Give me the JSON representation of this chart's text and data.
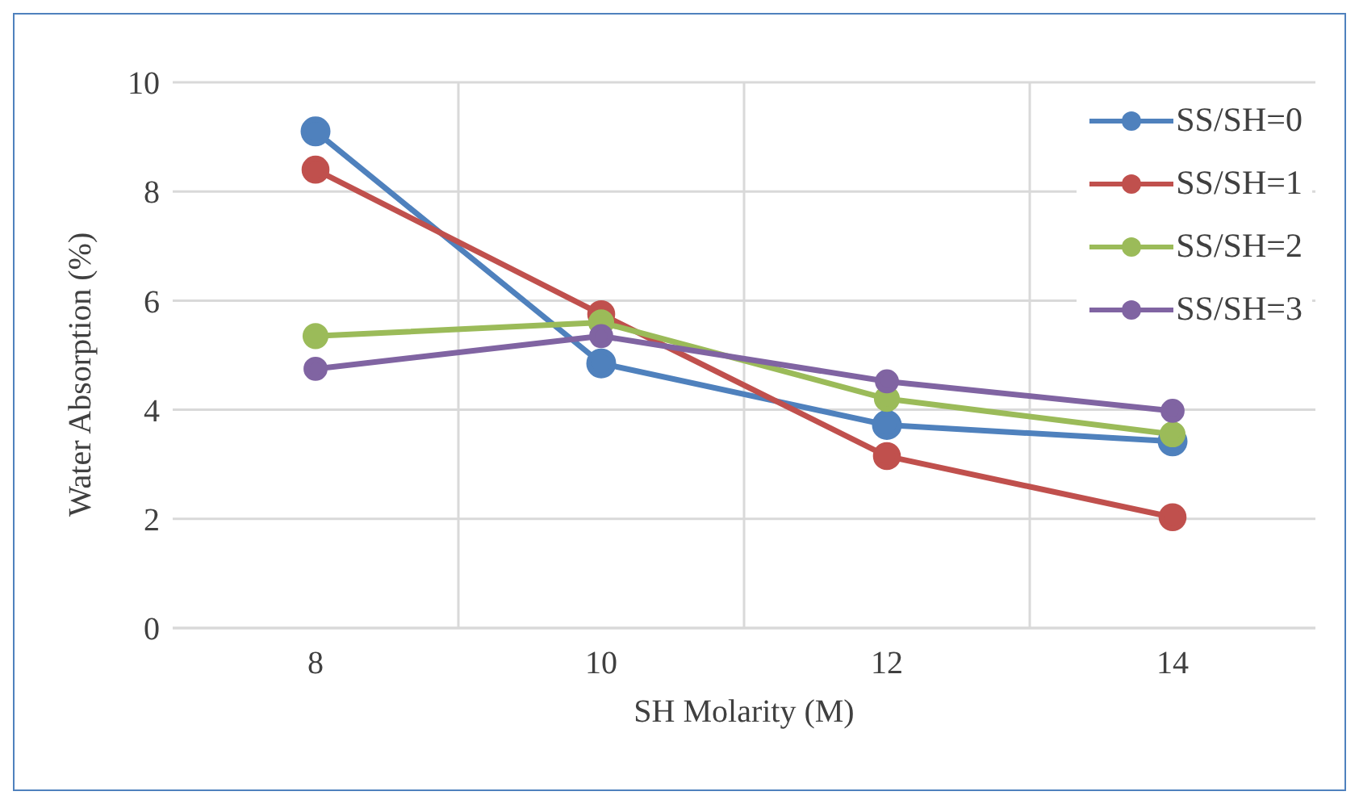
{
  "chart_data": {
    "type": "line",
    "xlabel": "SH Molarity (M)",
    "ylabel": "Water Absorption (%)",
    "categories": [
      "8",
      "10",
      "12",
      "14"
    ],
    "series": [
      {
        "name": "SS/SH=0",
        "color": "#4f81bd",
        "values": [
          9.1,
          4.85,
          3.72,
          3.42
        ]
      },
      {
        "name": "SS/SH=1",
        "color": "#c0504d",
        "values": [
          8.4,
          5.75,
          3.15,
          2.03
        ]
      },
      {
        "name": "SS/SH=2",
        "color": "#9bbb59",
        "values": [
          5.35,
          5.6,
          4.2,
          3.55
        ]
      },
      {
        "name": "SS/SH=3",
        "color": "#8064a2",
        "values": [
          4.75,
          5.35,
          4.52,
          3.98
        ]
      }
    ],
    "ylim": [
      0,
      10
    ],
    "yticks": [
      0,
      2,
      4,
      6,
      8,
      10
    ],
    "grid": true,
    "legend": "top right",
    "marker": "circle",
    "line_style": "solid"
  }
}
